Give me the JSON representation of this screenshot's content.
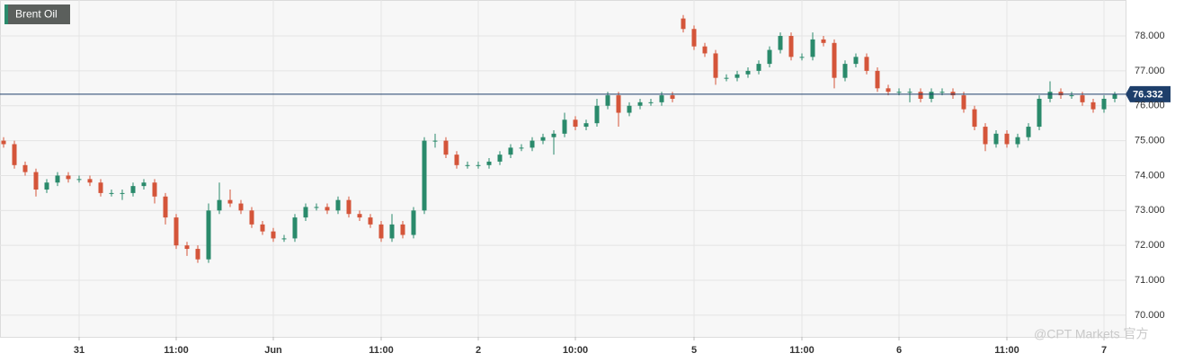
{
  "chart_data": {
    "type": "candlestick",
    "legend": "Brent Oil",
    "watermark": "@CPT Markets 官方",
    "up_color": "#2a8a6b",
    "down_color": "#d4553a",
    "grid": true,
    "ylim": [
      69.38,
      79.03
    ],
    "yticks": [
      {
        "value": 70,
        "label": "70.000"
      },
      {
        "value": 71,
        "label": "71.000"
      },
      {
        "value": 72,
        "label": "72.000"
      },
      {
        "value": 73,
        "label": "73.000"
      },
      {
        "value": 74,
        "label": "74.000"
      },
      {
        "value": 75,
        "label": "75.000"
      },
      {
        "value": 76,
        "label": "76.000"
      },
      {
        "value": 77,
        "label": "77.000"
      },
      {
        "value": 78,
        "label": "78.000"
      }
    ],
    "last_price": {
      "value": 76.332,
      "label": "76.332",
      "color": "#1e3f6b"
    },
    "categories": [
      null,
      null,
      null,
      null,
      null,
      null,
      null,
      "31",
      null,
      null,
      null,
      null,
      null,
      null,
      null,
      null,
      "11:00",
      null,
      null,
      null,
      null,
      null,
      null,
      null,
      null,
      "Jun",
      null,
      null,
      null,
      null,
      null,
      null,
      null,
      null,
      null,
      "11:00",
      null,
      null,
      null,
      null,
      null,
      null,
      null,
      null,
      "2",
      null,
      null,
      null,
      null,
      null,
      null,
      null,
      null,
      "10:00",
      null,
      null,
      null,
      null,
      null,
      null,
      null,
      null,
      null,
      null,
      "5",
      null,
      null,
      null,
      null,
      null,
      null,
      null,
      null,
      null,
      "11:00",
      null,
      null,
      null,
      null,
      null,
      null,
      null,
      null,
      "6",
      null,
      null,
      null,
      null,
      null,
      null,
      null,
      null,
      null,
      "11:00",
      null,
      null,
      null,
      null,
      null,
      null,
      null,
      null,
      "7",
      null
    ],
    "ohlc": [
      [
        75.0,
        75.1,
        74.8,
        74.9
      ],
      [
        74.9,
        75.0,
        74.2,
        74.3
      ],
      [
        74.3,
        74.4,
        74.0,
        74.1
      ],
      [
        74.1,
        74.2,
        73.4,
        73.6
      ],
      [
        73.6,
        73.9,
        73.5,
        73.8
      ],
      [
        73.8,
        74.1,
        73.7,
        74.0
      ],
      [
        74.0,
        74.1,
        73.8,
        73.9
      ],
      [
        73.9,
        74.0,
        73.8,
        73.9
      ],
      [
        73.9,
        74.0,
        73.7,
        73.8
      ],
      [
        73.8,
        73.9,
        73.4,
        73.5
      ],
      [
        73.5,
        73.6,
        73.4,
        73.5
      ],
      [
        73.5,
        73.6,
        73.3,
        73.5
      ],
      [
        73.5,
        73.8,
        73.4,
        73.7
      ],
      [
        73.7,
        73.9,
        73.6,
        73.8
      ],
      [
        73.8,
        73.9,
        73.2,
        73.4
      ],
      [
        73.4,
        73.5,
        72.6,
        72.8
      ],
      [
        72.8,
        72.9,
        71.9,
        72.0
      ],
      [
        72.0,
        72.1,
        71.7,
        71.9
      ],
      [
        71.9,
        72.0,
        71.5,
        71.6
      ],
      [
        71.6,
        73.2,
        71.5,
        73.0
      ],
      [
        73.0,
        73.8,
        72.9,
        73.3
      ],
      [
        73.3,
        73.6,
        73.1,
        73.2
      ],
      [
        73.2,
        73.3,
        72.9,
        73.0
      ],
      [
        73.0,
        73.1,
        72.5,
        72.6
      ],
      [
        72.6,
        72.7,
        72.3,
        72.4
      ],
      [
        72.4,
        72.5,
        72.1,
        72.2
      ],
      [
        72.2,
        72.3,
        72.1,
        72.2
      ],
      [
        72.2,
        72.9,
        72.1,
        72.8
      ],
      [
        72.8,
        73.2,
        72.7,
        73.1
      ],
      [
        73.1,
        73.2,
        73.0,
        73.1
      ],
      [
        73.1,
        73.2,
        72.9,
        73.0
      ],
      [
        73.0,
        73.4,
        72.9,
        73.3
      ],
      [
        73.3,
        73.4,
        72.8,
        72.9
      ],
      [
        72.9,
        73.0,
        72.7,
        72.8
      ],
      [
        72.8,
        72.9,
        72.5,
        72.6
      ],
      [
        72.6,
        72.7,
        72.1,
        72.2
      ],
      [
        72.2,
        72.9,
        72.1,
        72.6
      ],
      [
        72.6,
        72.7,
        72.2,
        72.3
      ],
      [
        72.3,
        73.1,
        72.2,
        73.0
      ],
      [
        73.0,
        75.1,
        72.9,
        75.0
      ],
      [
        75.0,
        75.2,
        74.8,
        75.0
      ],
      [
        75.0,
        75.1,
        74.5,
        74.6
      ],
      [
        74.6,
        74.7,
        74.2,
        74.3
      ],
      [
        74.3,
        74.4,
        74.2,
        74.3
      ],
      [
        74.3,
        74.4,
        74.2,
        74.3
      ],
      [
        74.3,
        74.5,
        74.2,
        74.4
      ],
      [
        74.4,
        74.7,
        74.3,
        74.6
      ],
      [
        74.6,
        74.9,
        74.5,
        74.8
      ],
      [
        74.8,
        74.9,
        74.7,
        74.8
      ],
      [
        74.8,
        75.1,
        74.7,
        75.0
      ],
      [
        75.0,
        75.2,
        74.9,
        75.1
      ],
      [
        75.1,
        75.3,
        74.6,
        75.2
      ],
      [
        75.2,
        75.8,
        75.1,
        75.6
      ],
      [
        75.6,
        75.7,
        75.3,
        75.4
      ],
      [
        75.4,
        75.6,
        75.3,
        75.5
      ],
      [
        75.5,
        76.2,
        75.4,
        76.0
      ],
      [
        76.0,
        76.4,
        75.9,
        76.3
      ],
      [
        76.3,
        76.4,
        75.4,
        75.8
      ],
      [
        75.8,
        76.1,
        75.7,
        76.0
      ],
      [
        76.0,
        76.2,
        75.9,
        76.1
      ],
      [
        76.1,
        76.2,
        76.0,
        76.1
      ],
      [
        76.1,
        76.4,
        76.0,
        76.3
      ],
      [
        76.3,
        76.4,
        76.1,
        76.2
      ],
      [
        78.5,
        78.6,
        78.1,
        78.2
      ],
      [
        78.2,
        78.3,
        77.6,
        77.7
      ],
      [
        77.7,
        77.8,
        77.4,
        77.5
      ],
      [
        77.5,
        77.6,
        76.6,
        76.8
      ],
      [
        76.8,
        76.9,
        76.7,
        76.8
      ],
      [
        76.8,
        77.0,
        76.7,
        76.9
      ],
      [
        76.9,
        77.1,
        76.8,
        77.0
      ],
      [
        77.0,
        77.3,
        76.9,
        77.2
      ],
      [
        77.2,
        77.7,
        77.1,
        77.6
      ],
      [
        77.6,
        78.1,
        77.5,
        78.0
      ],
      [
        78.0,
        78.1,
        77.3,
        77.4
      ],
      [
        77.4,
        77.5,
        77.3,
        77.4
      ],
      [
        77.4,
        78.1,
        77.3,
        77.9
      ],
      [
        77.9,
        78.0,
        77.7,
        77.8
      ],
      [
        77.8,
        77.9,
        76.5,
        76.8
      ],
      [
        76.8,
        77.3,
        76.7,
        77.2
      ],
      [
        77.2,
        77.5,
        77.1,
        77.4
      ],
      [
        77.4,
        77.5,
        76.9,
        77.0
      ],
      [
        77.0,
        77.1,
        76.4,
        76.5
      ],
      [
        76.5,
        76.6,
        76.3,
        76.4
      ],
      [
        76.4,
        76.5,
        76.3,
        76.4
      ],
      [
        76.4,
        76.5,
        76.1,
        76.4
      ],
      [
        76.4,
        76.5,
        76.1,
        76.2
      ],
      [
        76.2,
        76.5,
        76.1,
        76.4
      ],
      [
        76.4,
        76.5,
        76.3,
        76.4
      ],
      [
        76.4,
        76.5,
        76.2,
        76.3
      ],
      [
        76.3,
        76.4,
        75.8,
        75.9
      ],
      [
        75.9,
        76.0,
        75.3,
        75.4
      ],
      [
        75.4,
        75.5,
        74.7,
        74.9
      ],
      [
        74.9,
        75.3,
        74.8,
        75.2
      ],
      [
        75.2,
        75.3,
        74.8,
        74.9
      ],
      [
        74.9,
        75.2,
        74.8,
        75.1
      ],
      [
        75.1,
        75.5,
        75.0,
        75.4
      ],
      [
        75.4,
        76.3,
        75.3,
        76.2
      ],
      [
        76.2,
        76.7,
        76.1,
        76.4
      ],
      [
        76.4,
        76.5,
        76.2,
        76.3
      ],
      [
        76.3,
        76.4,
        76.2,
        76.3
      ],
      [
        76.3,
        76.4,
        76.0,
        76.1
      ],
      [
        76.1,
        76.2,
        75.8,
        75.9
      ],
      [
        75.9,
        76.3,
        75.8,
        76.2
      ],
      [
        76.2,
        76.4,
        76.1,
        76.33
      ]
    ]
  }
}
